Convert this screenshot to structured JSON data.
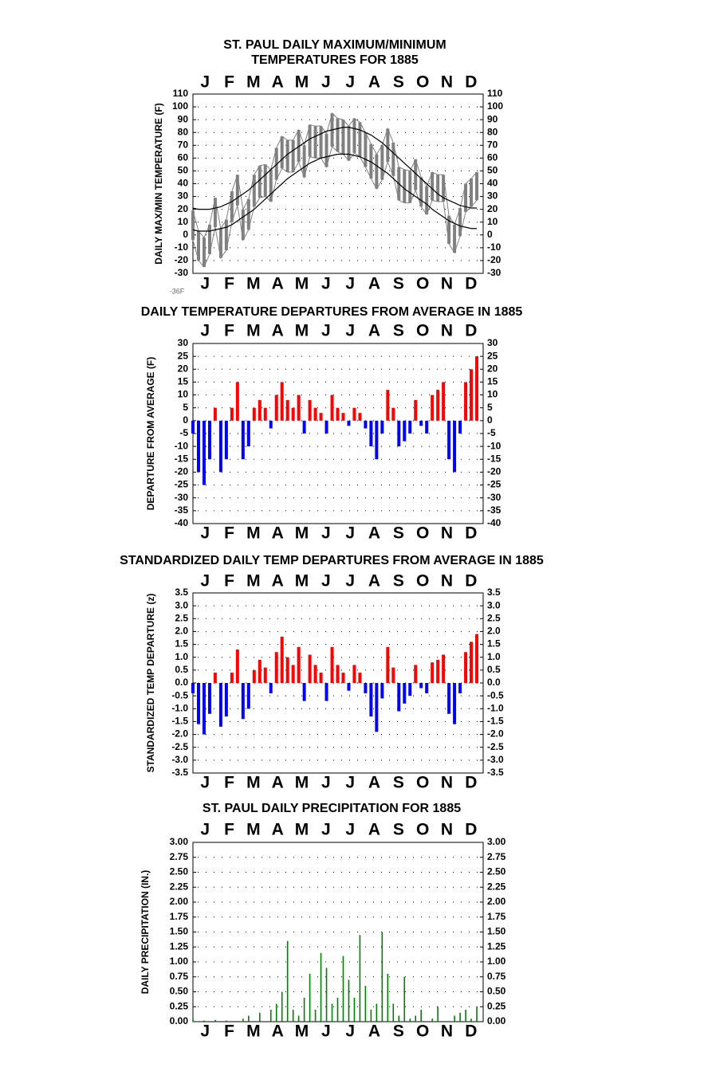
{
  "chart_data": [
    {
      "type": "line",
      "title": [
        "ST. PAUL DAILY MAXIMUM/MINIMUM",
        "TEMPERATURES FOR 1885"
      ],
      "y_label": "DAILY MAX/MIN TEMPERATURE (F)",
      "annotation": "-36F",
      "categories": [
        "J",
        "F",
        "M",
        "A",
        "M",
        "J",
        "J",
        "A",
        "S",
        "O",
        "N",
        "D"
      ],
      "x": [
        1,
        8,
        15,
        22,
        29,
        36,
        43,
        50,
        57,
        64,
        71,
        78,
        85,
        92,
        99,
        106,
        113,
        120,
        127,
        134,
        141,
        148,
        155,
        162,
        169,
        176,
        183,
        190,
        197,
        204,
        211,
        218,
        225,
        232,
        239,
        246,
        253,
        260,
        267,
        274,
        281,
        288,
        295,
        302,
        309,
        316,
        323,
        330,
        337,
        344,
        351,
        358
      ],
      "xlim": [
        1,
        366
      ],
      "ylim": [
        -30,
        110
      ],
      "yticks": [
        -30,
        -20,
        -10,
        0,
        10,
        20,
        30,
        40,
        50,
        60,
        70,
        80,
        90,
        100,
        110
      ],
      "grid": true,
      "band": {
        "color": "#808080",
        "high": [
          19,
          3,
          -2,
          8,
          29,
          5,
          12,
          34,
          47,
          20,
          28,
          47,
          54,
          55,
          51,
          68,
          77,
          74,
          74,
          82,
          70,
          86,
          85,
          85,
          79,
          95,
          91,
          90,
          85,
          91,
          88,
          80,
          71,
          63,
          70,
          83,
          72,
          53,
          51,
          50,
          59,
          45,
          38,
          49,
          47,
          47,
          15,
          8,
          21,
          40,
          44,
          49
        ],
        "low": [
          -4,
          -20,
          -25,
          -15,
          6,
          -18,
          -12,
          10,
          23,
          -4,
          4,
          22,
          29,
          30,
          26,
          43,
          52,
          49,
          49,
          57,
          45,
          61,
          60,
          60,
          53,
          69,
          65,
          63,
          58,
          64,
          61,
          53,
          44,
          36,
          43,
          57,
          46,
          27,
          25,
          25,
          35,
          22,
          16,
          27,
          26,
          26,
          -7,
          -14,
          -1,
          18,
          22,
          27
        ]
      },
      "series": [
        {
          "color": "#000000",
          "values": [
            21,
            20,
            20,
            20,
            21,
            22,
            24,
            26,
            29,
            32,
            35,
            39,
            43,
            47,
            51,
            55,
            59,
            63,
            66,
            69,
            72,
            75,
            77,
            79,
            81,
            82,
            83,
            84,
            84,
            83,
            82,
            80,
            78,
            75,
            72,
            68,
            64,
            60,
            56,
            52,
            48,
            44,
            40,
            36,
            32,
            29,
            27,
            25,
            23,
            22,
            21,
            21
          ]
        },
        {
          "color": "#000000",
          "values": [
            4,
            3,
            3,
            3,
            4,
            5,
            6,
            8,
            11,
            14,
            17,
            20,
            24,
            28,
            32,
            36,
            40,
            44,
            47,
            50,
            53,
            56,
            58,
            60,
            61,
            62,
            63,
            63,
            63,
            62,
            61,
            59,
            57,
            54,
            51,
            48,
            44,
            40,
            36,
            33,
            30,
            27,
            24,
            20,
            17,
            14,
            11,
            9,
            7,
            6,
            5,
            5
          ]
        }
      ]
    },
    {
      "type": "bar",
      "title": "DAILY TEMPERATURE DEPARTURES FROM AVERAGE IN 1885",
      "y_label": "DEPARTURE FROM AVERAGE (F)",
      "categories": [
        "J",
        "F",
        "M",
        "A",
        "M",
        "J",
        "J",
        "A",
        "S",
        "O",
        "N",
        "D"
      ],
      "x": [
        1,
        8,
        15,
        22,
        29,
        36,
        43,
        50,
        57,
        64,
        71,
        78,
        85,
        92,
        99,
        106,
        113,
        120,
        127,
        134,
        141,
        148,
        155,
        162,
        169,
        176,
        183,
        190,
        197,
        204,
        211,
        218,
        225,
        232,
        239,
        246,
        253,
        260,
        267,
        274,
        281,
        288,
        295,
        302,
        309,
        316,
        323,
        330,
        337,
        344,
        351,
        358
      ],
      "xlim": [
        1,
        366
      ],
      "ylim": [
        -40,
        30
      ],
      "yticks": [
        -40,
        -35,
        -30,
        -25,
        -20,
        -15,
        -10,
        -5,
        0,
        5,
        10,
        15,
        20,
        25,
        30
      ],
      "grid": true,
      "colors": {
        "positive": "#ff0000",
        "negative": "#0000ff"
      },
      "values": [
        -5,
        -20,
        -25,
        -15,
        5,
        -20,
        -15,
        5,
        15,
        -15,
        -10,
        5,
        8,
        5,
        -3,
        10,
        15,
        8,
        5,
        10,
        -5,
        8,
        5,
        3,
        -5,
        10,
        5,
        3,
        -2,
        5,
        3,
        -3,
        -10,
        -15,
        -5,
        12,
        5,
        -10,
        -8,
        -5,
        8,
        -2,
        -5,
        10,
        12,
        15,
        -15,
        -20,
        -5,
        15,
        20,
        25
      ]
    },
    {
      "type": "bar",
      "title": "STANDARDIZED DAILY TEMP DEPARTURES FROM AVERAGE IN 1885",
      "y_label": "STANDARDIZED TEMP DEPARTURE (z)",
      "categories": [
        "J",
        "F",
        "M",
        "A",
        "M",
        "J",
        "J",
        "A",
        "S",
        "O",
        "N",
        "D"
      ],
      "x": [
        1,
        8,
        15,
        22,
        29,
        36,
        43,
        50,
        57,
        64,
        71,
        78,
        85,
        92,
        99,
        106,
        113,
        120,
        127,
        134,
        141,
        148,
        155,
        162,
        169,
        176,
        183,
        190,
        197,
        204,
        211,
        218,
        225,
        232,
        239,
        246,
        253,
        260,
        267,
        274,
        281,
        288,
        295,
        302,
        309,
        316,
        323,
        330,
        337,
        344,
        351,
        358
      ],
      "xlim": [
        1,
        366
      ],
      "ylim": [
        -3.5,
        3.5
      ],
      "yticks": [
        -3.5,
        {
          "value": -3,
          "label": "-3.0"
        },
        -2.5,
        {
          "value": -2,
          "label": "-2.0"
        },
        -1.5,
        {
          "value": -1,
          "label": "-1.0"
        },
        -0.5,
        {
          "value": 0,
          "label": "0.0"
        },
        0.5,
        {
          "value": 1,
          "label": "1.0"
        },
        1.5,
        {
          "value": 2,
          "label": "2.0"
        },
        2.5,
        {
          "value": 3,
          "label": "3.0"
        },
        3.5
      ],
      "grid": true,
      "colors": {
        "positive": "#ff0000",
        "negative": "#0000ff"
      },
      "values": [
        -0.4,
        -1.6,
        -2.0,
        -1.2,
        0.4,
        -1.7,
        -1.3,
        0.4,
        1.3,
        -1.4,
        -1.0,
        0.5,
        0.9,
        0.6,
        -0.4,
        1.2,
        1.8,
        1.0,
        0.7,
        1.4,
        -0.7,
        1.1,
        0.7,
        0.4,
        -0.7,
        1.4,
        0.7,
        0.4,
        -0.3,
        0.7,
        0.4,
        -0.4,
        -1.3,
        -1.9,
        -0.6,
        1.4,
        0.6,
        -1.1,
        -0.8,
        -0.5,
        0.7,
        -0.2,
        -0.4,
        0.8,
        0.9,
        1.1,
        -1.2,
        -1.6,
        -0.4,
        1.2,
        1.6,
        1.9
      ]
    },
    {
      "type": "bar",
      "title": "ST. PAUL DAILY PRECIPITATION FOR 1885",
      "y_label": "DAILY PRECIPITATION (IN.)",
      "categories": [
        "J",
        "F",
        "M",
        "A",
        "M",
        "J",
        "J",
        "A",
        "S",
        "O",
        "N",
        "D"
      ],
      "x": [
        1,
        8,
        15,
        22,
        29,
        36,
        43,
        50,
        57,
        64,
        71,
        78,
        85,
        92,
        99,
        106,
        113,
        120,
        127,
        134,
        141,
        148,
        155,
        162,
        169,
        176,
        183,
        190,
        197,
        204,
        211,
        218,
        225,
        232,
        239,
        246,
        253,
        260,
        267,
        274,
        281,
        288,
        295,
        302,
        309,
        316,
        323,
        330,
        337,
        344,
        351,
        358
      ],
      "xlim": [
        1,
        366
      ],
      "ylim": [
        0,
        3
      ],
      "yticks": [
        {
          "value": 0,
          "label": "0.00"
        },
        0.25,
        {
          "value": 0.5,
          "label": "0.50"
        },
        0.75,
        {
          "value": 1,
          "label": "1.00"
        },
        1.25,
        {
          "value": 1.5,
          "label": "1.50"
        },
        1.75,
        {
          "value": 2,
          "label": "2.00"
        },
        2.25,
        {
          "value": 2.5,
          "label": "2.50"
        },
        2.75,
        {
          "value": 3,
          "label": "3.00"
        }
      ],
      "grid": true,
      "color": "#008000",
      "values": [
        0.05,
        0,
        0.02,
        0,
        0.03,
        0,
        0.02,
        0.01,
        0,
        0.05,
        0.1,
        0,
        0.15,
        0,
        0.2,
        0.3,
        0.5,
        1.35,
        0.2,
        0.1,
        0.4,
        0.8,
        0.2,
        1.15,
        0.9,
        0.3,
        0.4,
        1.1,
        0.7,
        0.4,
        1.45,
        0.6,
        0.2,
        0.3,
        1.5,
        0.8,
        0.3,
        0.1,
        0.75,
        0.05,
        0.1,
        0.2,
        0,
        0.05,
        0.25,
        0,
        0,
        0.1,
        0.15,
        0.2,
        0.05,
        0.25
      ]
    }
  ]
}
